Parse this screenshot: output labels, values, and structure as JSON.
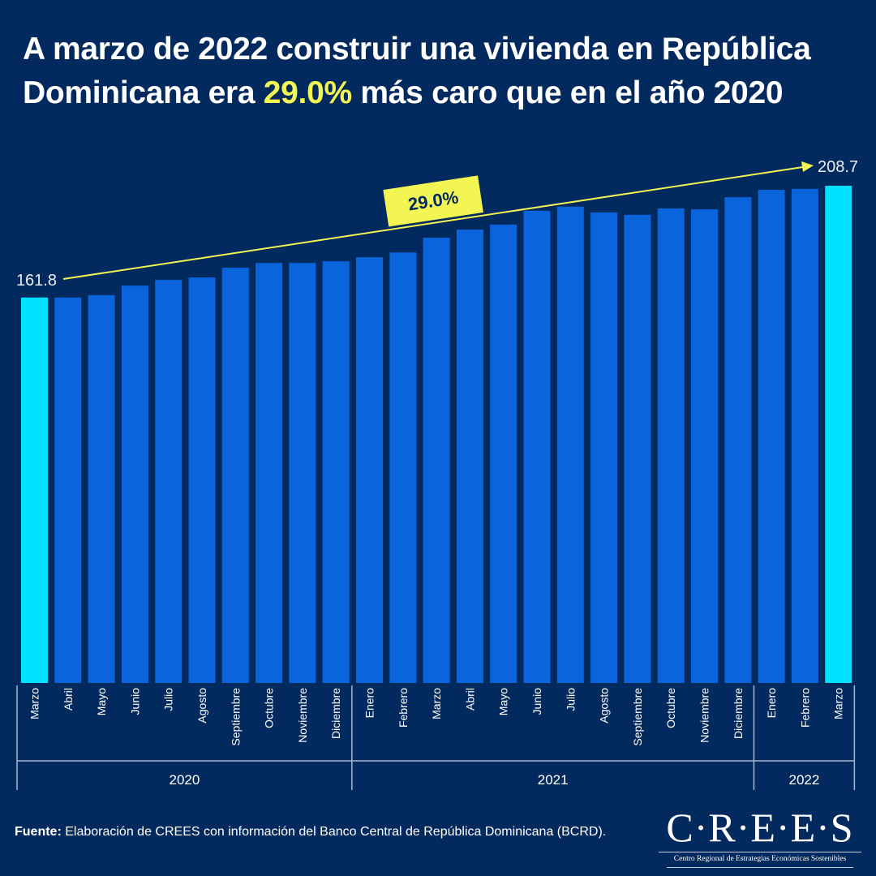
{
  "title": {
    "part1": "A marzo de 2022 construir una vivienda en República Dominicana era ",
    "highlight": "29.0%",
    "part2": " más caro que en el año 2020"
  },
  "colors": {
    "background": "#032a5e",
    "bar": "#0a64dc",
    "bar_highlight": "#00e1ff",
    "accent": "#f3f552",
    "annotation_text": "#032a5e"
  },
  "chart_data": {
    "type": "bar",
    "title": "A marzo de 2022 construir una vivienda en República Dominicana era 29.0% más caro que en el año 2020",
    "xlabel": "",
    "ylabel": "",
    "ylim": [
      0,
      215
    ],
    "grid": false,
    "categories": [
      "Marzo",
      "Abril",
      "Mayo",
      "Junio",
      "Julio",
      "Agosto",
      "Septiembre",
      "Octubre",
      "Noviembre",
      "Diciembre",
      "Enero",
      "Febrero",
      "Marzo",
      "Abril",
      "Mayo",
      "Junio",
      "Julio",
      "Agosto",
      "Septiembre",
      "Octubre",
      "Noviembre",
      "Diciembre",
      "Enero",
      "Febrero",
      "Marzo"
    ],
    "values": [
      161.8,
      161.8,
      162.8,
      166.8,
      169.2,
      170.2,
      174.3,
      176.3,
      176.3,
      177.0,
      178.7,
      180.7,
      186.9,
      190.3,
      192.4,
      198.2,
      199.9,
      197.5,
      196.5,
      199.2,
      198.8,
      203.9,
      207.0,
      207.4,
      208.7
    ],
    "highlighted": [
      0,
      24
    ],
    "year_groups": [
      {
        "label": "2020",
        "start": 0,
        "end": 9
      },
      {
        "label": "2021",
        "start": 10,
        "end": 21
      },
      {
        "label": "2022",
        "start": 22,
        "end": 24
      }
    ],
    "annotations": {
      "start_label": "161.8",
      "end_label": "208.7",
      "change_label": "29.0%"
    }
  },
  "footer": {
    "source_label": "Fuente:",
    "source_text": " Elaboración de CREES con información del Banco Central de República Dominicana (BCRD).",
    "logo_name": "C·R·E·E·S",
    "logo_subtitle": "Centro Regional de Estrategias Económicas Sostenibles"
  }
}
